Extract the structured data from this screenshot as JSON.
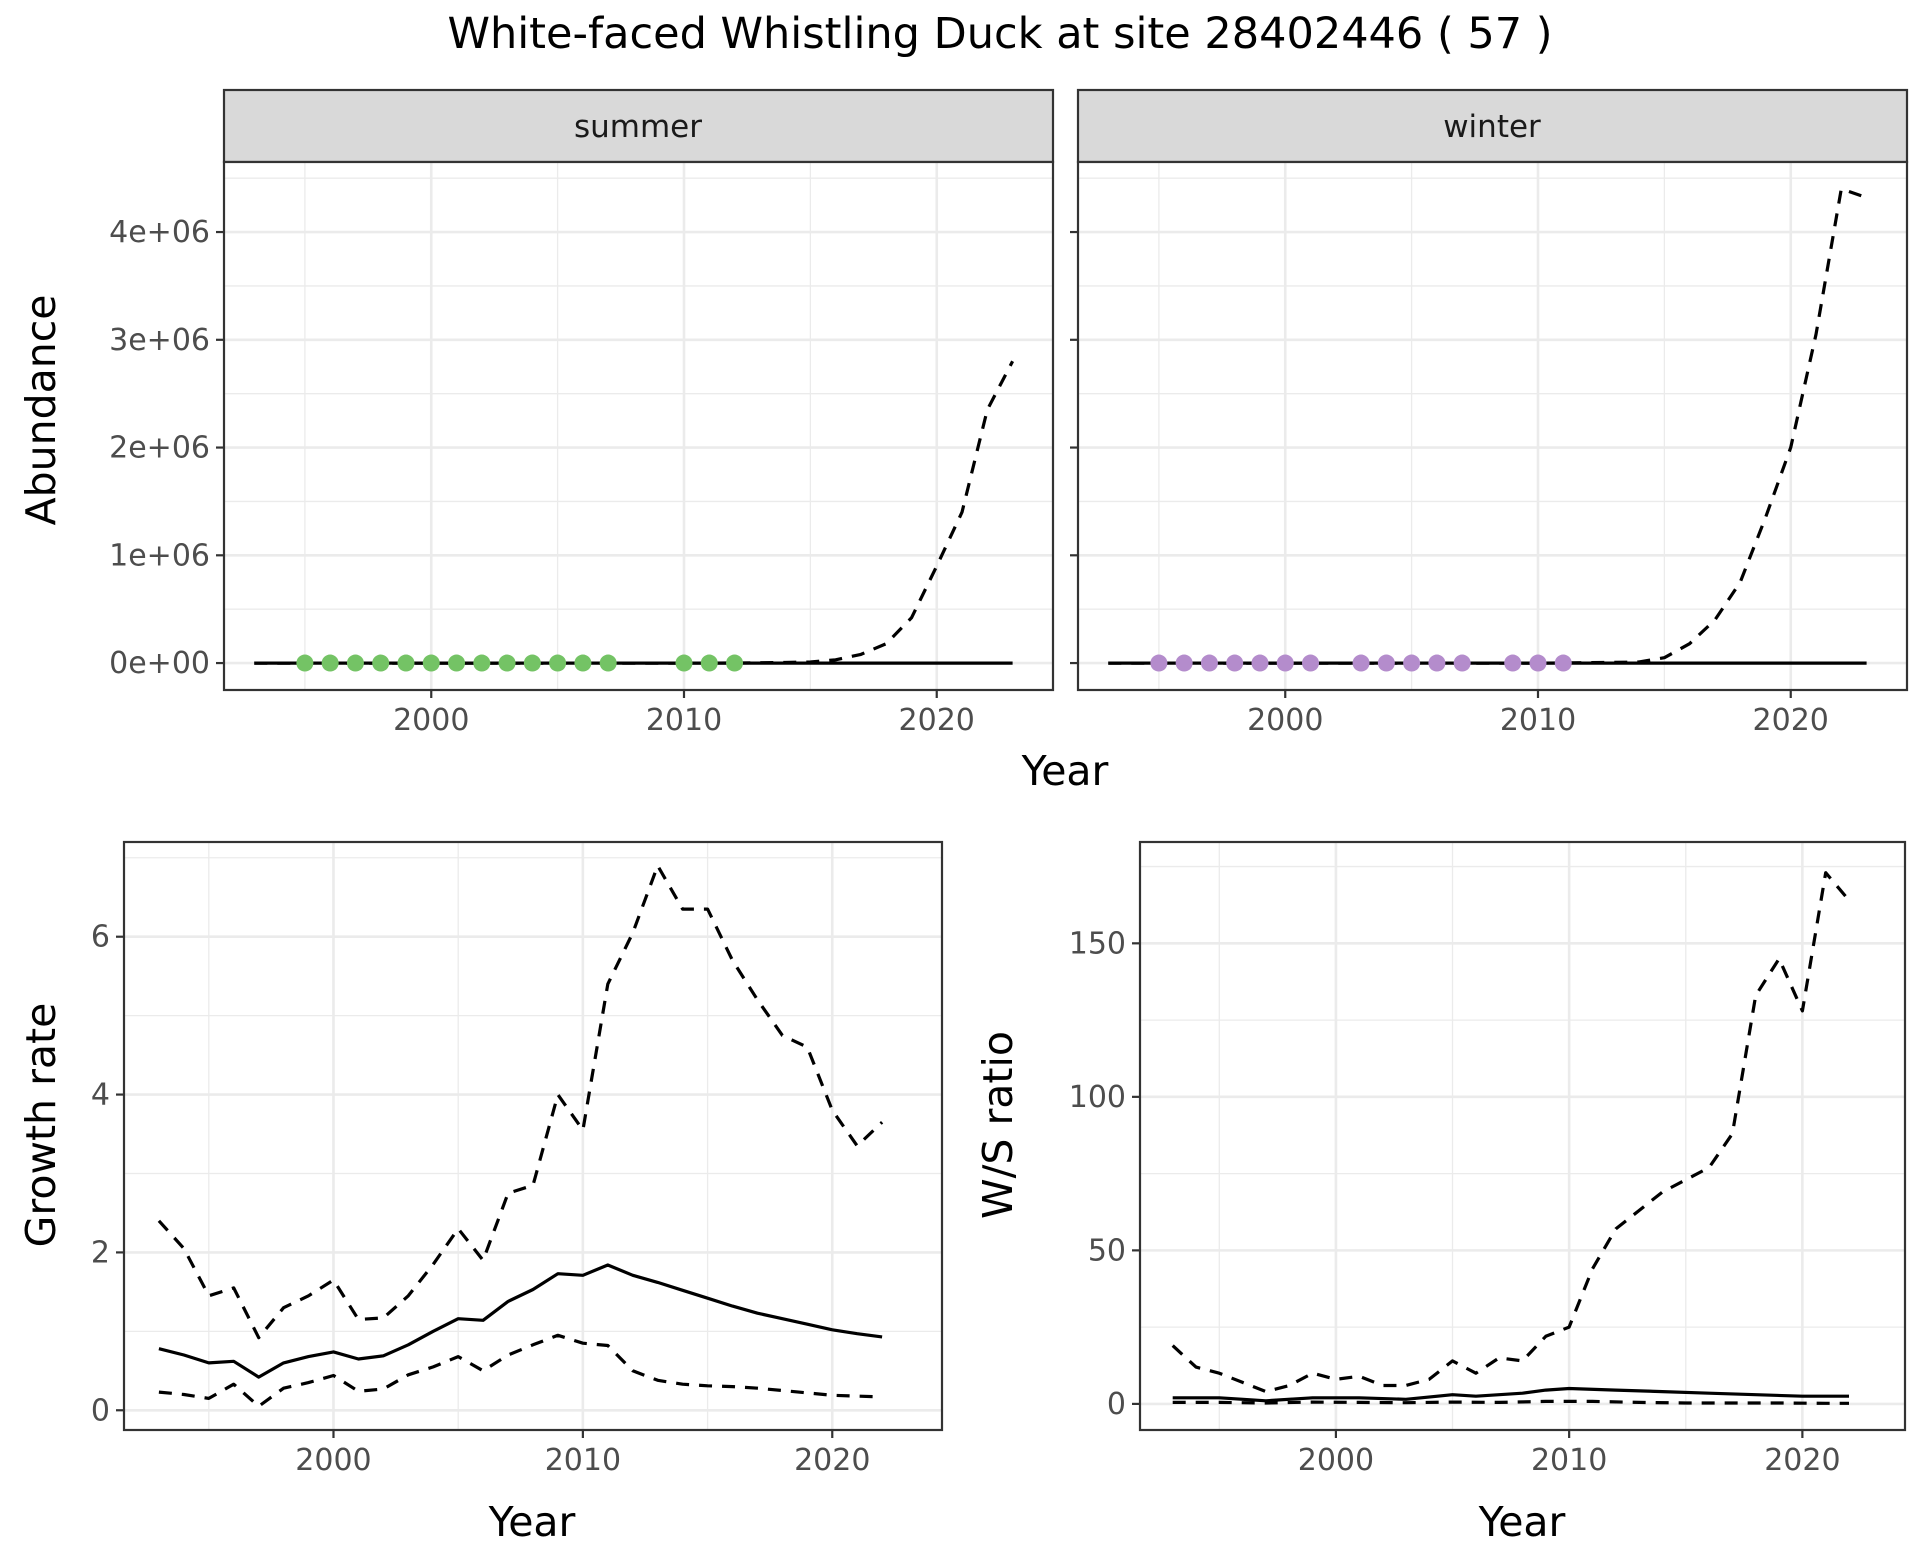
{
  "title": "White-faced Whistling Duck at site 28402446 ( 57 )",
  "colors": {
    "summer_points": "#74c365",
    "winter_points": "#b48ccc",
    "strip": "#d9d9d9"
  },
  "top": {
    "xlabel": "Year",
    "ylabel": "Abundance"
  },
  "chart_data": [
    {
      "type": "line",
      "panel": "summer",
      "title": "summer",
      "xlabel": "Year",
      "ylabel": "Abundance",
      "xlim": [
        1991.8,
        2024.6
      ],
      "ylim": [
        -250000,
        4650000
      ],
      "xticks": [
        2000,
        2010,
        2020
      ],
      "xtick_labels": [
        "2000",
        "2010",
        "2020"
      ],
      "yticks": [
        0,
        1000000,
        2000000,
        3000000,
        4000000
      ],
      "ytick_labels": [
        "0e+00",
        "1e+06",
        "2e+06",
        "3e+06",
        "4e+06"
      ],
      "grid": true,
      "series": [
        {
          "style": "solid",
          "x": [
            1993,
            2000,
            2010,
            2015,
            2020,
            2023
          ],
          "y": [
            0,
            0,
            0,
            0,
            0,
            0
          ]
        },
        {
          "style": "dashed",
          "x": [
            1993,
            2000,
            2005,
            2010,
            2012,
            2014,
            2015,
            2016,
            2017,
            2018,
            2019,
            2020,
            2021,
            2022,
            2023
          ],
          "y": [
            0,
            0,
            0,
            0,
            1000,
            5000,
            10000,
            30000,
            80000,
            180000,
            420000,
            900000,
            1400000,
            2350000,
            2800000
          ]
        }
      ],
      "points": {
        "x": [
          1995,
          1996,
          1997,
          1998,
          1999,
          2000,
          2001,
          2002,
          2003,
          2004,
          2005,
          2006,
          2007,
          2010,
          2011,
          2012
        ],
        "y": [
          0,
          0,
          0,
          0,
          0,
          0,
          0,
          0,
          0,
          0,
          0,
          0,
          0,
          0,
          0,
          0
        ]
      }
    },
    {
      "type": "line",
      "panel": "winter",
      "title": "winter",
      "xlabel": "Year",
      "ylabel": "Abundance",
      "xlim": [
        1991.8,
        2024.6
      ],
      "ylim": [
        -250000,
        4650000
      ],
      "xticks": [
        2000,
        2010,
        2020
      ],
      "xtick_labels": [
        "2000",
        "2010",
        "2020"
      ],
      "grid": true,
      "series": [
        {
          "style": "solid",
          "x": [
            1993,
            2000,
            2010,
            2015,
            2020,
            2023
          ],
          "y": [
            0,
            0,
            0,
            0,
            0,
            0
          ]
        },
        {
          "style": "dashed",
          "x": [
            1993,
            2000,
            2005,
            2010,
            2012,
            2014,
            2015,
            2016,
            2017,
            2018,
            2019,
            2020,
            2021,
            2022,
            2023
          ],
          "y": [
            0,
            0,
            0,
            0,
            3000,
            10000,
            50000,
            180000,
            400000,
            750000,
            1350000,
            2000000,
            3050000,
            4400000,
            4320000
          ]
        }
      ],
      "points": {
        "x": [
          1995,
          1996,
          1997,
          1998,
          1999,
          2000,
          2001,
          2003,
          2004,
          2005,
          2006,
          2007,
          2009,
          2010,
          2011
        ],
        "y": [
          0,
          0,
          0,
          0,
          0,
          0,
          0,
          0,
          0,
          0,
          0,
          0,
          0,
          0,
          0
        ]
      }
    },
    {
      "type": "line",
      "panel": "growth",
      "xlabel": "Year",
      "ylabel": "Growth rate",
      "xlim": [
        1991.6,
        2024.4
      ],
      "ylim": [
        -0.25,
        7.2
      ],
      "xticks": [
        2000,
        2010,
        2020
      ],
      "xtick_labels": [
        "2000",
        "2010",
        "2020"
      ],
      "yticks": [
        0,
        2,
        4,
        6
      ],
      "ytick_labels": [
        "0",
        "2",
        "4",
        "6"
      ],
      "grid": true,
      "series": [
        {
          "style": "solid",
          "x": [
            1993,
            1994,
            1995,
            1996,
            1997,
            1998,
            1999,
            2000,
            2001,
            2002,
            2003,
            2004,
            2005,
            2006,
            2007,
            2008,
            2009,
            2010,
            2011,
            2012,
            2013,
            2014,
            2015,
            2016,
            2017,
            2018,
            2019,
            2020,
            2021,
            2022
          ],
          "y": [
            0.78,
            0.7,
            0.6,
            0.62,
            0.42,
            0.6,
            0.68,
            0.74,
            0.65,
            0.69,
            0.83,
            1.0,
            1.16,
            1.14,
            1.38,
            1.53,
            1.73,
            1.71,
            1.84,
            1.71,
            1.62,
            1.52,
            1.42,
            1.32,
            1.23,
            1.16,
            1.09,
            1.02,
            0.97,
            0.93
          ]
        },
        {
          "style": "dashed",
          "x": [
            1993,
            1994,
            1995,
            1996,
            1997,
            1998,
            1999,
            2000,
            2001,
            2002,
            2003,
            2004,
            2005,
            2006,
            2007,
            2008,
            2009,
            2010,
            2011,
            2012,
            2013,
            2014,
            2015,
            2016,
            2017,
            2018,
            2019,
            2020,
            2021,
            2022
          ],
          "y": [
            2.4,
            2.05,
            1.45,
            1.55,
            0.92,
            1.3,
            1.45,
            1.65,
            1.15,
            1.17,
            1.45,
            1.85,
            2.3,
            1.9,
            2.75,
            2.85,
            4.0,
            3.55,
            5.4,
            6.05,
            6.9,
            6.35,
            6.35,
            5.7,
            5.2,
            4.75,
            4.6,
            3.8,
            3.35,
            3.65
          ]
        },
        {
          "style": "dashed",
          "x": [
            1993,
            1994,
            1995,
            1996,
            1997,
            1998,
            1999,
            2000,
            2001,
            2002,
            2003,
            2004,
            2005,
            2006,
            2007,
            2008,
            2009,
            2010,
            2011,
            2012,
            2013,
            2014,
            2015,
            2016,
            2017,
            2018,
            2019,
            2020,
            2021,
            2022
          ],
          "y": [
            0.23,
            0.2,
            0.15,
            0.33,
            0.05,
            0.28,
            0.35,
            0.44,
            0.24,
            0.27,
            0.45,
            0.55,
            0.68,
            0.5,
            0.7,
            0.83,
            0.95,
            0.85,
            0.82,
            0.5,
            0.38,
            0.33,
            0.31,
            0.3,
            0.28,
            0.25,
            0.22,
            0.19,
            0.18,
            0.17
          ]
        }
      ]
    },
    {
      "type": "line",
      "panel": "ratio",
      "xlabel": "Year",
      "ylabel": "W/S ratio",
      "xlim": [
        1991.6,
        2024.4
      ],
      "ylim": [
        -8.5,
        183
      ],
      "xticks": [
        2000,
        2010,
        2020
      ],
      "xtick_labels": [
        "2000",
        "2010",
        "2020"
      ],
      "yticks": [
        0,
        50,
        100,
        150
      ],
      "ytick_labels": [
        "0",
        "50",
        "100",
        "150"
      ],
      "grid": true,
      "series": [
        {
          "style": "solid",
          "x": [
            1993,
            1995,
            1997,
            1999,
            2001,
            2003,
            2005,
            2006,
            2008,
            2009,
            2010,
            2012,
            2014,
            2016,
            2018,
            2020,
            2022
          ],
          "y": [
            2,
            2,
            1,
            2,
            2,
            1.5,
            3,
            2.5,
            3.5,
            4.5,
            5,
            4.5,
            4,
            3.5,
            3,
            2.5,
            2.5
          ]
        },
        {
          "style": "dashed",
          "x": [
            1993,
            1994,
            1995,
            1996,
            1997,
            1998,
            1999,
            2000,
            2001,
            2002,
            2003,
            2004,
            2005,
            2006,
            2007,
            2008,
            2009,
            2010,
            2011,
            2012,
            2013,
            2014,
            2015,
            2016,
            2017,
            2018,
            2019,
            2020,
            2021,
            2022
          ],
          "y": [
            19,
            12,
            10,
            7,
            4,
            6,
            10,
            8,
            9,
            6,
            6,
            8,
            14,
            10,
            15,
            14,
            22,
            25,
            44,
            57,
            63,
            69,
            73,
            77,
            88,
            133,
            145,
            128,
            173,
            164
          ]
        },
        {
          "style": "dashed",
          "x": [
            1993,
            1995,
            1997,
            1999,
            2001,
            2003,
            2005,
            2007,
            2009,
            2011,
            2013,
            2015,
            2017,
            2019,
            2021,
            2022
          ],
          "y": [
            0.5,
            0.5,
            0.3,
            0.6,
            0.5,
            0.4,
            0.6,
            0.5,
            0.8,
            0.8,
            0.5,
            0.3,
            0.3,
            0.3,
            0.2,
            0.2
          ]
        }
      ]
    }
  ]
}
